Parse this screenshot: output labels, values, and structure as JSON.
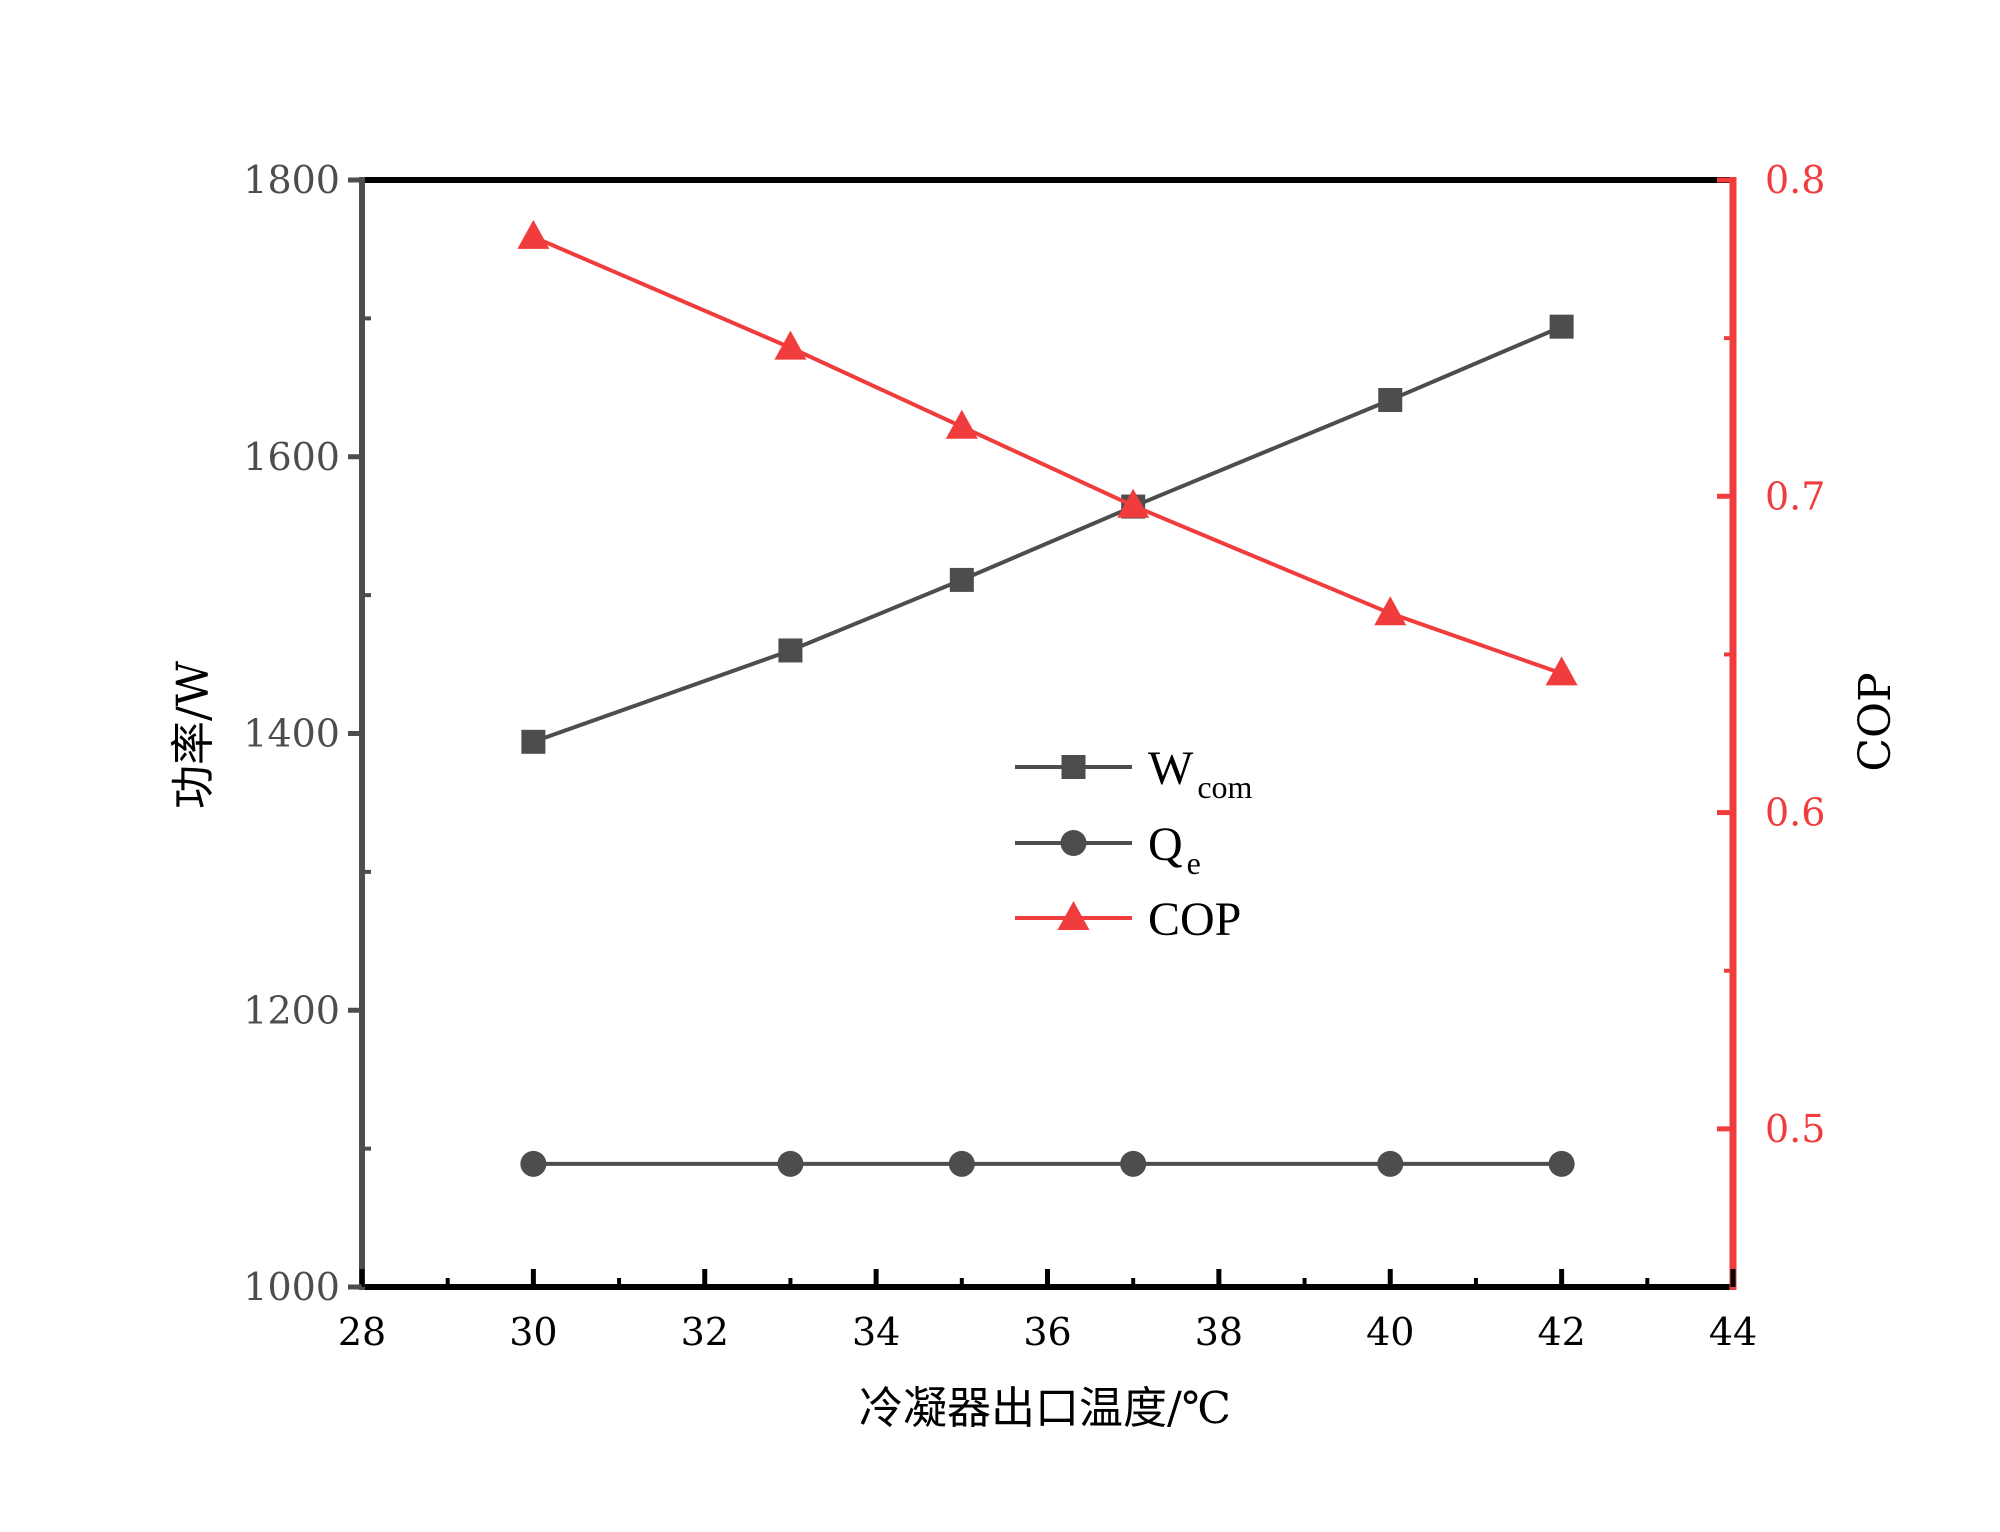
{
  "chart_data": {
    "type": "line",
    "title": "",
    "xlabel": "冷凝器出口温度/℃",
    "ylabel": "功率/W",
    "y2label": "COP",
    "xlim": [
      28,
      44
    ],
    "ylim": [
      1000,
      1800
    ],
    "y2lim": [
      0.45,
      0.8
    ],
    "x_ticks": [
      "28",
      "30",
      "32",
      "34",
      "36",
      "38",
      "40",
      "42",
      "44"
    ],
    "y_ticks": [
      "1000",
      "1200",
      "1400",
      "1600",
      "1800"
    ],
    "y2_ticks": [
      "0.5",
      "0.6",
      "0.7",
      "0.8"
    ],
    "grid": false,
    "legend_position": "center",
    "series": [
      {
        "name": "W",
        "name_sub": "com",
        "axis": "left",
        "marker": "square",
        "color": "#4d4d4d",
        "x": [
          30,
          33,
          35,
          37,
          40,
          42
        ],
        "values": [
          1394,
          1460,
          1511,
          1564,
          1641,
          1694
        ]
      },
      {
        "name": "Q",
        "name_sub": "e",
        "axis": "left",
        "marker": "circle",
        "color": "#4d4d4d",
        "x": [
          30,
          33,
          35,
          37,
          40,
          42
        ],
        "values": [
          1089,
          1089,
          1089,
          1089,
          1089,
          1089
        ]
      },
      {
        "name": "COP",
        "name_sub": "",
        "axis": "right",
        "marker": "triangle",
        "color": "#f03c3c",
        "x": [
          30,
          33,
          35,
          37,
          40,
          42
        ],
        "values": [
          0.782,
          0.747,
          0.722,
          0.697,
          0.663,
          0.644
        ]
      }
    ]
  }
}
